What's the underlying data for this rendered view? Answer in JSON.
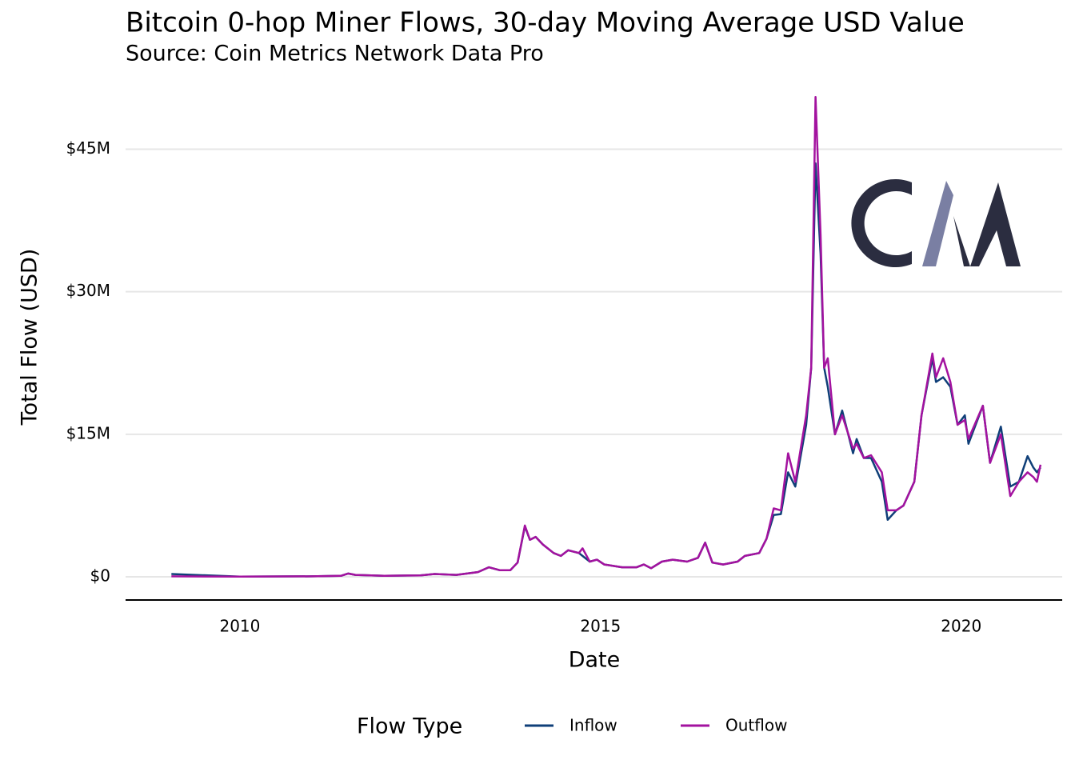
{
  "chart_data": {
    "type": "line",
    "title": "Bitcoin 0-hop Miner Flows, 30-day Moving Average USD Value",
    "subtitle": "Source: Coin Metrics Network Data Pro",
    "x_label": "Date",
    "y_label": "Total Flow (USD)",
    "legend_title": "Flow Type",
    "legend_position": "bottom",
    "grid": true,
    "x": [
      2009.05,
      2010.0,
      2011.0,
      2011.4,
      2011.5,
      2011.6,
      2012.0,
      2012.5,
      2012.7,
      2013.0,
      2013.3,
      2013.45,
      2013.6,
      2013.75,
      2013.85,
      2013.95,
      2014.02,
      2014.1,
      2014.2,
      2014.35,
      2014.45,
      2014.55,
      2014.7,
      2014.75,
      2014.85,
      2014.95,
      2015.05,
      2015.3,
      2015.5,
      2015.6,
      2015.7,
      2015.85,
      2016.0,
      2016.2,
      2016.35,
      2016.45,
      2016.55,
      2016.7,
      2016.9,
      2017.0,
      2017.2,
      2017.3,
      2017.4,
      2017.5,
      2017.6,
      2017.7,
      2017.85,
      2017.92,
      2017.98,
      2018.05,
      2018.1,
      2018.15,
      2018.25,
      2018.35,
      2018.5,
      2018.55,
      2018.65,
      2018.75,
      2018.9,
      2018.98,
      2019.1,
      2019.2,
      2019.35,
      2019.45,
      2019.6,
      2019.65,
      2019.75,
      2019.85,
      2019.95,
      2020.05,
      2020.1,
      2020.3,
      2020.4,
      2020.55,
      2020.68,
      2020.8,
      2020.92,
      2021.0,
      2021.05,
      2021.1
    ],
    "series": [
      {
        "name": "Inflow",
        "color": "#0f3f78",
        "values": [
          0.3,
          0.02,
          0.05,
          0.1,
          0.35,
          0.2,
          0.1,
          0.15,
          0.3,
          0.2,
          0.5,
          1.0,
          0.7,
          0.7,
          1.5,
          5.3,
          3.9,
          4.2,
          3.4,
          2.5,
          2.2,
          2.8,
          2.5,
          2.2,
          1.6,
          1.8,
          1.3,
          1.0,
          1.0,
          1.3,
          0.9,
          1.6,
          1.8,
          1.6,
          2.0,
          3.6,
          1.5,
          1.3,
          1.6,
          2.2,
          2.5,
          4.0,
          6.5,
          6.6,
          11,
          9.5,
          16,
          22,
          43.5,
          34,
          22,
          20,
          15,
          17.5,
          13,
          14.5,
          12.5,
          12.5,
          10,
          6,
          7,
          7.5,
          10,
          17,
          23,
          20.5,
          21,
          20,
          16,
          17,
          14,
          18,
          12,
          15.8,
          9.5,
          10,
          12.7,
          11.5,
          11,
          11.5
        ]
      },
      {
        "name": "Outflow",
        "color": "#a3129f",
        "values": [
          0.05,
          0.02,
          0.05,
          0.1,
          0.35,
          0.2,
          0.1,
          0.15,
          0.3,
          0.2,
          0.5,
          1.0,
          0.7,
          0.7,
          1.5,
          5.4,
          3.9,
          4.2,
          3.4,
          2.5,
          2.2,
          2.8,
          2.5,
          3.0,
          1.6,
          1.8,
          1.3,
          1.0,
          1.0,
          1.3,
          0.9,
          1.6,
          1.8,
          1.6,
          2.0,
          3.6,
          1.5,
          1.3,
          1.6,
          2.2,
          2.5,
          4.0,
          7.2,
          7.0,
          13,
          10,
          17,
          22,
          50.5,
          36,
          22,
          23,
          15,
          17,
          13.5,
          14,
          12.5,
          12.8,
          11,
          7,
          7,
          7.5,
          10,
          17,
          23.5,
          21,
          23,
          20.5,
          16,
          16.5,
          14.5,
          18,
          12,
          15,
          8.5,
          10,
          11,
          10.5,
          10,
          11.8
        ]
      }
    ],
    "xlim": [
      2008.415,
      2021.4
    ],
    "xticks": [
      2010,
      2015,
      2020
    ],
    "ylim": [
      -2.44,
      50.6
    ],
    "yticks": [
      {
        "value": 0,
        "label": "$0"
      },
      {
        "value": 15,
        "label": "$15M"
      },
      {
        "value": 30,
        "label": "$30M"
      },
      {
        "value": 45,
        "label": "$45M"
      }
    ]
  }
}
